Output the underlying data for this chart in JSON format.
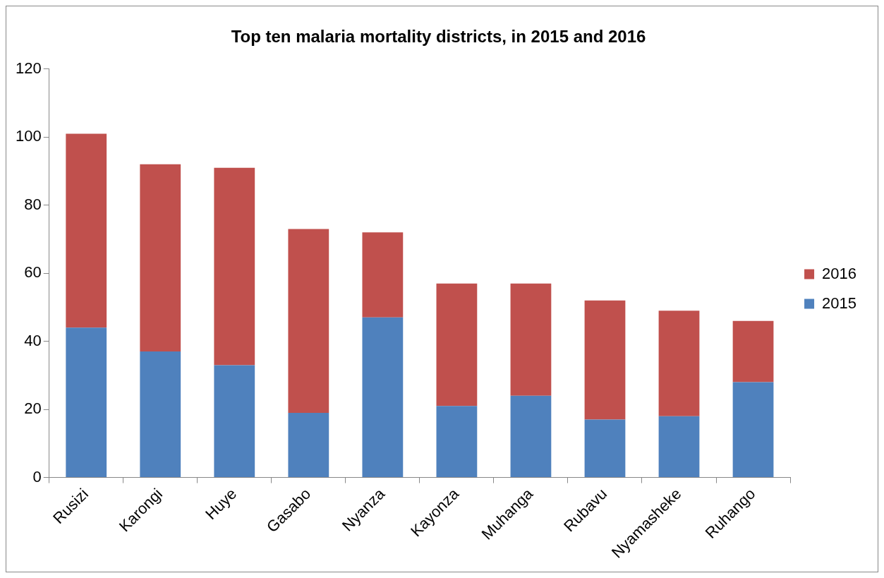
{
  "chart_data": {
    "type": "bar",
    "title": "Top ten malaria mortality districts, in 2015 and 2016",
    "categories": [
      "Rusizi",
      "Karongi",
      "Huye",
      "Gasabo",
      "Nyanza",
      "Kayonza",
      "Muhanga",
      "Rubavu",
      "Nyamasheke",
      "Ruhango"
    ],
    "series": [
      {
        "name": "2015",
        "color": "#4f81bd",
        "values": [
          44,
          37,
          33,
          19,
          47,
          21,
          24,
          17,
          18,
          28
        ]
      },
      {
        "name": "2016",
        "color": "#c0504d",
        "values": [
          57,
          55,
          58,
          54,
          25,
          36,
          33,
          35,
          31,
          18
        ]
      }
    ],
    "stacked": true,
    "ylim": [
      0,
      120
    ],
    "yticks": [
      0,
      20,
      40,
      60,
      80,
      100,
      120
    ],
    "grid": false,
    "legend": "right"
  }
}
